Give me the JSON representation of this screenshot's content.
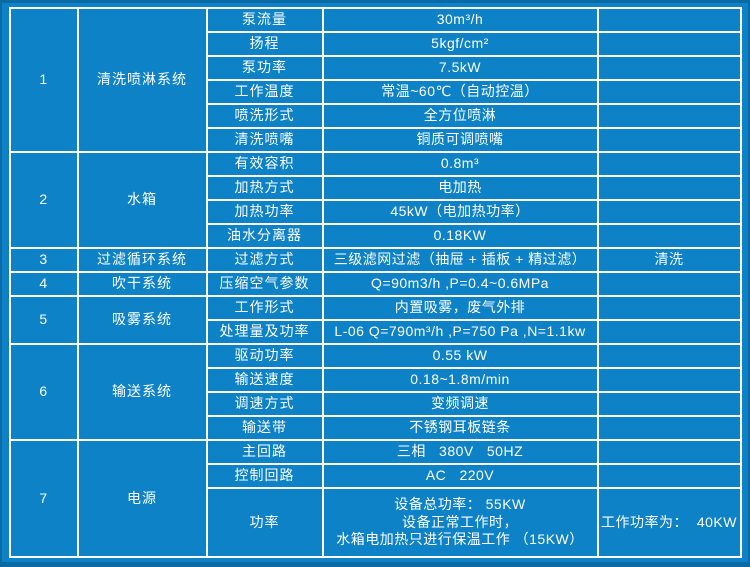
{
  "colors": {
    "bg": "#0d82c6",
    "edge": "#0b69a4",
    "grid": "#ffffff",
    "text": "#ffffff"
  },
  "table": {
    "sections": [
      {
        "no": "1",
        "system": "清洗喷淋系统",
        "rows": [
          {
            "param": "泵流量",
            "value": "30m³/h",
            "note": ""
          },
          {
            "param": "扬程",
            "value": "5kgf/cm²",
            "note": ""
          },
          {
            "param": "泵功率",
            "value": "7.5kW",
            "note": ""
          },
          {
            "param": "工作温度",
            "value": "常温~60℃（自动控温）",
            "note": ""
          },
          {
            "param": "喷洗形式",
            "value": "全方位喷淋",
            "note": ""
          },
          {
            "param": "清洗喷嘴",
            "value": "铜质可调喷嘴",
            "note": ""
          }
        ]
      },
      {
        "no": "2",
        "system": "水箱",
        "rows": [
          {
            "param": "有效容积",
            "value": "0.8m³",
            "note": ""
          },
          {
            "param": "加热方式",
            "value": "电加热",
            "note": ""
          },
          {
            "param": "加热功率",
            "value": "45kW（电加热功率）",
            "note": ""
          },
          {
            "param": "油水分离器",
            "value": "0.18KW",
            "note": ""
          }
        ]
      },
      {
        "no": "3",
        "system": "过滤循环系统",
        "rows": [
          {
            "param": "过滤方式",
            "value": "三级滤网过滤（抽屉 + 插板 + 精过滤）",
            "note": "清洗"
          }
        ]
      },
      {
        "no": "4",
        "system": "吹干系统",
        "rows": [
          {
            "param": "压缩空气参数",
            "value": "Q=90m3/h ,P=0.4~0.6MPa",
            "note": ""
          }
        ]
      },
      {
        "no": "5",
        "system": "吸雾系统",
        "rows": [
          {
            "param": "工作形式",
            "value": "内置吸雾，废气外排",
            "note": ""
          },
          {
            "param": "处理量及功率",
            "value": "L-06 Q=790m³/h ,P=750 Pa ,N=1.1kw",
            "note": ""
          }
        ]
      },
      {
        "no": "6",
        "system": "输送系统",
        "rows": [
          {
            "param": "驱动功率",
            "value": "0.55 kW",
            "note": ""
          },
          {
            "param": "输送速度",
            "value": "0.18~1.8m/min",
            "note": ""
          },
          {
            "param": "调速方式",
            "value": "变频调速",
            "note": ""
          },
          {
            "param": "输送带",
            "value": "不锈钢耳板链条",
            "note": ""
          }
        ]
      },
      {
        "no": "7",
        "system": "电源",
        "rows": [
          {
            "param": "主回路",
            "value": "三相   380V   50HZ",
            "note": ""
          },
          {
            "param": "控制回路",
            "value": "AC   220V",
            "note": ""
          },
          {
            "param": "功率",
            "value": "设备总功率： 55KW\n设备正常工作时，\n水箱电加热只进行保温工作 （15KW）",
            "note": "工作功率为：  40KW"
          }
        ]
      }
    ]
  }
}
